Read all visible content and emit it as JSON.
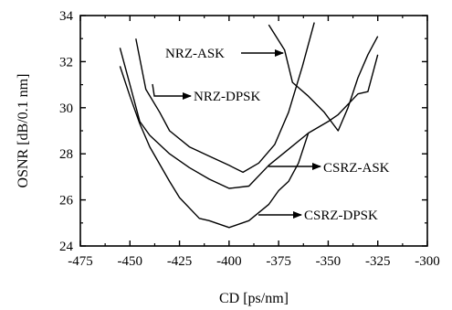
{
  "chart_data": {
    "type": "line",
    "xlabel": "CD [ps/nm]",
    "ylabel": "OSNR [dB/0.1 nm]",
    "xlim": [
      -475,
      -300
    ],
    "ylim": [
      24,
      34
    ],
    "xticks": [
      -475,
      -450,
      -425,
      -400,
      -375,
      -350,
      -325,
      -300
    ],
    "yticks": [
      24,
      26,
      28,
      30,
      32,
      34
    ],
    "xtick_labels": [
      "-475",
      "-450",
      "-425",
      "-400",
      "-375",
      "-350",
      "-325",
      "-300"
    ],
    "ytick_labels": [
      "24",
      "26",
      "28",
      "30",
      "32",
      "34"
    ],
    "grid": false,
    "legend": "none",
    "series": [
      {
        "name": "NRZ-ASK",
        "x": [
          -380,
          -372,
          -368,
          -360,
          -352,
          -345,
          -340,
          -335,
          -330,
          -325
        ],
        "y": [
          33.6,
          32.5,
          31.1,
          30.5,
          29.8,
          29.0,
          30.0,
          31.3,
          32.3,
          33.1
        ]
      },
      {
        "name": "NRZ-DPSK",
        "x": [
          -447,
          -442,
          -435,
          -430,
          -420,
          -410,
          -400,
          -393,
          -385,
          -377,
          -370,
          -363,
          -357
        ],
        "y": [
          33.0,
          30.8,
          29.8,
          29.0,
          28.3,
          27.9,
          27.5,
          27.2,
          27.6,
          28.4,
          29.8,
          31.8,
          33.7
        ]
      },
      {
        "name": "CSRZ-ASK",
        "x": [
          -455,
          -450,
          -445,
          -440,
          -430,
          -420,
          -410,
          -400,
          -390,
          -380,
          -370,
          -360,
          -350,
          -345,
          -335,
          -330,
          -325
        ],
        "y": [
          32.6,
          31.0,
          29.4,
          28.8,
          28.0,
          27.4,
          26.9,
          26.5,
          26.6,
          27.5,
          28.2,
          28.9,
          29.4,
          29.7,
          30.6,
          30.7,
          32.3
        ]
      },
      {
        "name": "CSRZ-DPSK",
        "x": [
          -455,
          -450,
          -445,
          -440,
          -430,
          -425,
          -415,
          -410,
          -400,
          -390,
          -380,
          -375,
          -370,
          -365,
          -360
        ],
        "y": [
          31.8,
          30.5,
          29.3,
          28.3,
          26.8,
          26.1,
          25.2,
          25.1,
          24.8,
          25.1,
          25.8,
          26.4,
          26.8,
          27.6,
          28.9
        ]
      }
    ],
    "annotations": [
      {
        "text": "NRZ-ASK"
      },
      {
        "text": "NRZ-DPSK"
      },
      {
        "text": "CSRZ-ASK"
      },
      {
        "text": "CSRZ-DPSK"
      }
    ]
  }
}
